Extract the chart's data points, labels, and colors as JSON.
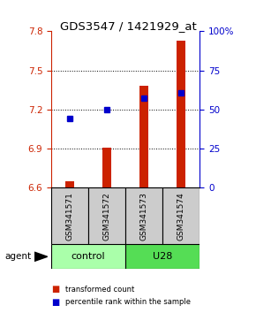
{
  "title": "GDS3547 / 1421929_at",
  "samples": [
    "GSM341571",
    "GSM341572",
    "GSM341573",
    "GSM341574"
  ],
  "bar_bottom": 6.6,
  "bar_tops": [
    6.653,
    6.905,
    7.38,
    7.73
  ],
  "percentile_values": [
    7.13,
    7.2,
    7.285,
    7.325
  ],
  "ylim": [
    6.6,
    7.8
  ],
  "yticks_left": [
    6.6,
    6.9,
    7.2,
    7.5,
    7.8
  ],
  "yticks_right": [
    0,
    25,
    50,
    75,
    100
  ],
  "bar_color": "#cc2200",
  "dot_color": "#0000cc",
  "groups": [
    {
      "label": "control",
      "indices": [
        0,
        1
      ],
      "color": "#aaffaa"
    },
    {
      "label": "U28",
      "indices": [
        2,
        3
      ],
      "color": "#55dd55"
    }
  ],
  "group_row_color": "#cccccc",
  "agent_label": "agent",
  "legend_bar_label": "transformed count",
  "legend_dot_label": "percentile rank within the sample",
  "bar_width": 0.25,
  "background_color": "#ffffff"
}
